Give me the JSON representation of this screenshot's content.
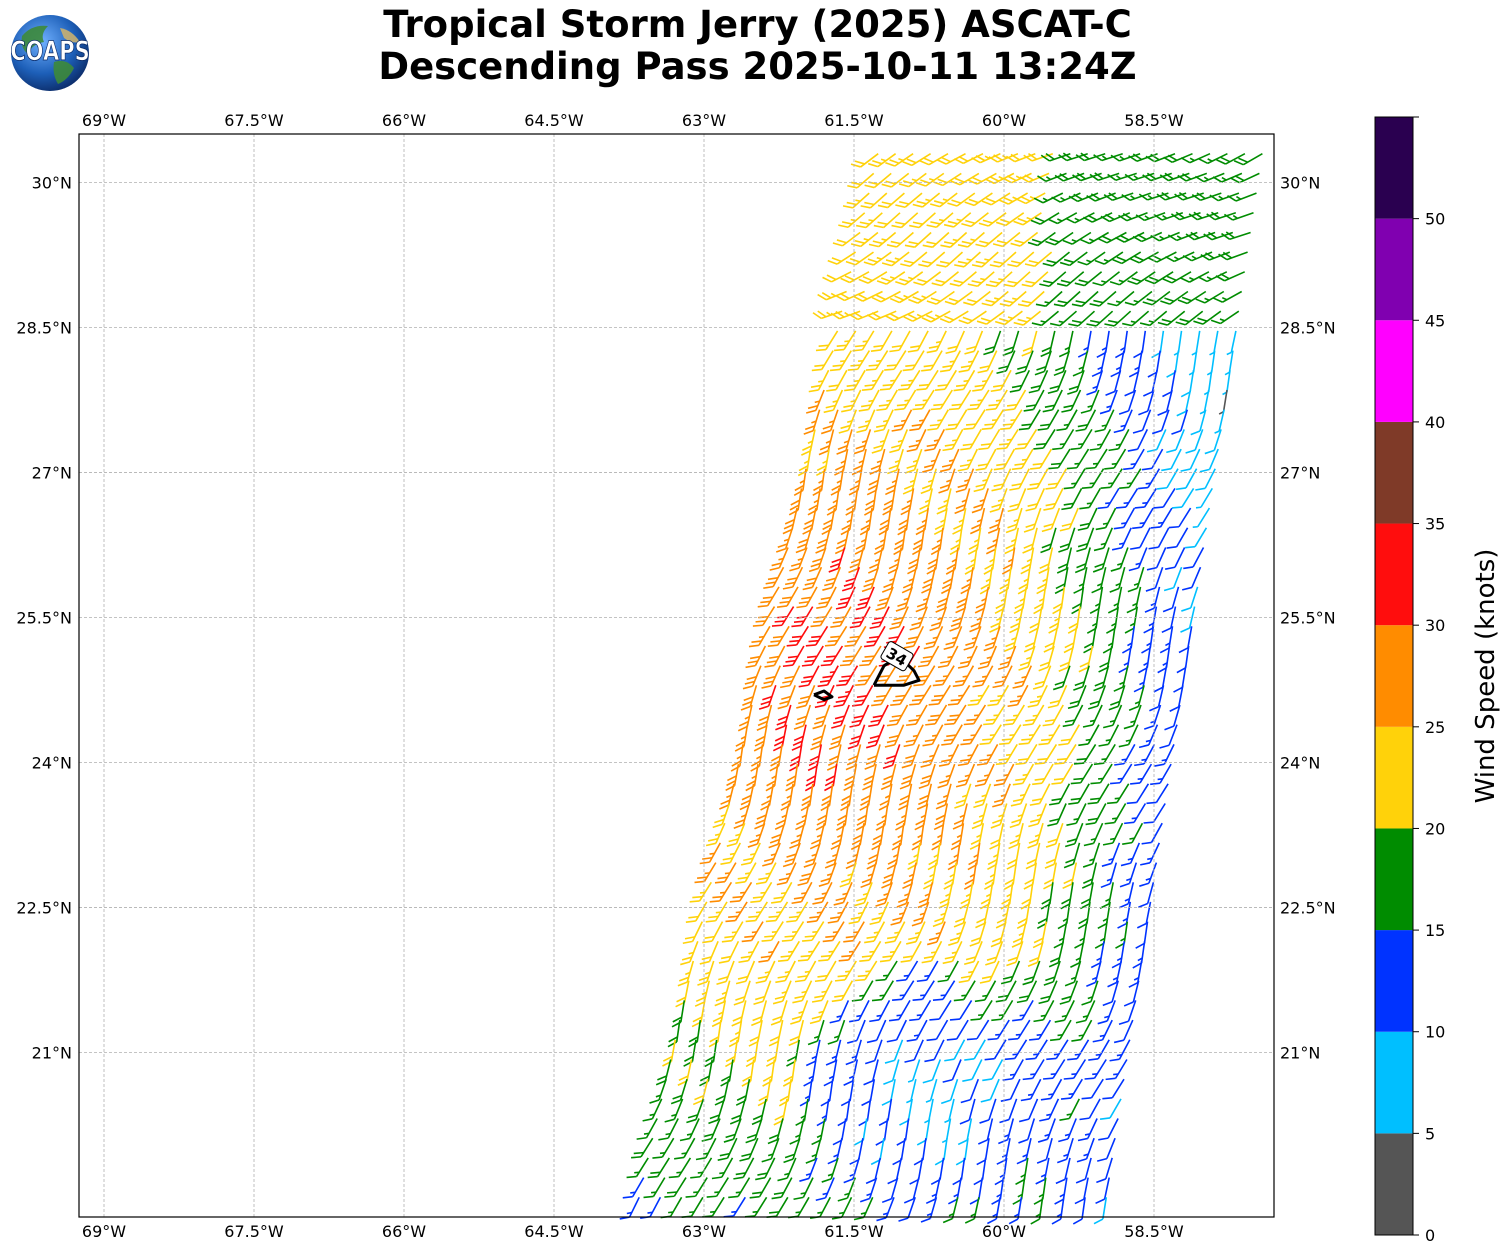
{
  "title": {
    "line1": "Tropical Storm Jerry (2025) ASCAT-C",
    "line2": "Descending Pass 2025-10-11 13:24Z"
  },
  "logo": {
    "text": "COAPS",
    "name": "coaps-globe-logo"
  },
  "map": {
    "lon_range": [
      -69.25,
      -57.3
    ],
    "lat_range": [
      19.3,
      30.5
    ],
    "lon_ticks": [
      {
        "value": -69,
        "label": "69°W"
      },
      {
        "value": -67.5,
        "label": "67.5°W"
      },
      {
        "value": -66,
        "label": "66°W"
      },
      {
        "value": -64.5,
        "label": "64.5°W"
      },
      {
        "value": -63,
        "label": "63°W"
      },
      {
        "value": -61.5,
        "label": "61.5°W"
      },
      {
        "value": -60,
        "label": "60°W"
      },
      {
        "value": -58.5,
        "label": "58.5°W"
      }
    ],
    "lat_ticks": [
      {
        "value": 30,
        "label": "30°N"
      },
      {
        "value": 28.5,
        "label": "28.5°N"
      },
      {
        "value": 27,
        "label": "27°N"
      },
      {
        "value": 25.5,
        "label": "25.5°N"
      },
      {
        "value": 24,
        "label": "24°N"
      },
      {
        "value": 22.5,
        "label": "22.5°N"
      },
      {
        "value": 21,
        "label": "21°N"
      }
    ],
    "swath": {
      "description_direction": "wind from southwest, barbs point toward lower-left",
      "corners": [
        [
          -61.3,
          30.5
        ],
        [
          -57.3,
          30.5
        ],
        [
          -58.9,
          19.3
        ],
        [
          -63.8,
          19.3
        ]
      ]
    },
    "contour": {
      "label": "34",
      "label_position": [
        -61.07,
        25.1
      ],
      "shape_main": [
        [
          -61.3,
          24.8
        ],
        [
          -61.2,
          25.0
        ],
        [
          -61.05,
          25.1
        ],
        [
          -60.9,
          24.95
        ],
        [
          -60.85,
          24.85
        ],
        [
          -61.0,
          24.8
        ],
        [
          -61.3,
          24.8
        ]
      ],
      "shape_small": [
        [
          -61.9,
          24.7
        ],
        [
          -61.8,
          24.74
        ],
        [
          -61.72,
          24.68
        ],
        [
          -61.8,
          24.65
        ],
        [
          -61.9,
          24.7
        ]
      ]
    }
  },
  "colorbar": {
    "label": "Wind Speed (knots)",
    "bins": [
      {
        "min": 0,
        "max": 5,
        "color": "#555555"
      },
      {
        "min": 5,
        "max": 10,
        "color": "#00bfff"
      },
      {
        "min": 10,
        "max": 15,
        "color": "#0033ff"
      },
      {
        "min": 15,
        "max": 20,
        "color": "#008c00"
      },
      {
        "min": 20,
        "max": 25,
        "color": "#ffd20a"
      },
      {
        "min": 25,
        "max": 30,
        "color": "#ff8c00"
      },
      {
        "min": 30,
        "max": 35,
        "color": "#ff0d0d"
      },
      {
        "min": 35,
        "max": 40,
        "color": "#7f3a28"
      },
      {
        "min": 40,
        "max": 45,
        "color": "#ff00ff"
      },
      {
        "min": 45,
        "max": 50,
        "color": "#8000b0"
      },
      {
        "min": 50,
        "max": 55,
        "color": "#2a0050"
      }
    ],
    "tick_labels": [
      "0",
      "5",
      "10",
      "15",
      "20",
      "25",
      "30",
      "35",
      "40",
      "45",
      "50"
    ]
  }
}
